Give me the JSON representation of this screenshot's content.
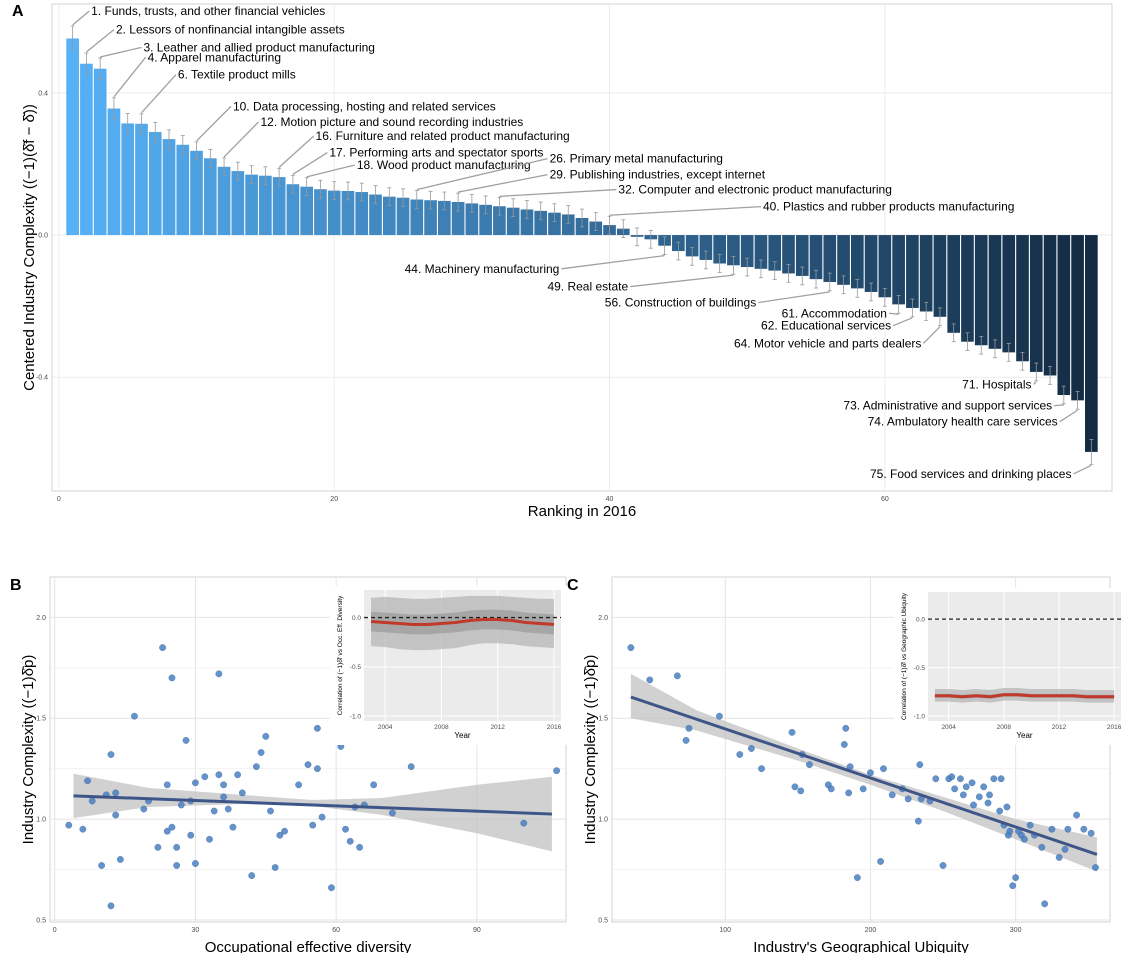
{
  "panel_labels": [
    "A",
    "B",
    "C"
  ],
  "chart_data": [
    {
      "id": "A",
      "type": "bar",
      "xlabel": "Ranking in 2016",
      "ylabel": "Centered Industry Complexity ((−1)(δ̂f − δ̄))",
      "xticks": [
        0,
        20,
        40,
        60
      ],
      "yticks": [
        -0.4,
        0.0,
        0.4
      ],
      "ytick_labels": [
        "-0.4",
        "0.0",
        "0.4"
      ],
      "xlim": [
        -0.5,
        76.5
      ],
      "ylim": [
        -0.72,
        0.65
      ],
      "grid": true,
      "gradient": [
        "#56b1f7",
        "#132b43"
      ],
      "errorbar_color": "#999999",
      "values": [
        0.553,
        0.482,
        0.468,
        0.356,
        0.314,
        0.313,
        0.29,
        0.27,
        0.254,
        0.237,
        0.216,
        0.192,
        0.18,
        0.17,
        0.167,
        0.163,
        0.143,
        0.136,
        0.129,
        0.125,
        0.124,
        0.121,
        0.114,
        0.108,
        0.105,
        0.1,
        0.098,
        0.096,
        0.093,
        0.089,
        0.085,
        0.081,
        0.077,
        0.072,
        0.068,
        0.063,
        0.058,
        0.048,
        0.038,
        0.028,
        0.018,
        -0.005,
        -0.012,
        -0.03,
        -0.045,
        -0.06,
        -0.07,
        -0.08,
        -0.085,
        -0.09,
        -0.095,
        -0.1,
        -0.108,
        -0.115,
        -0.124,
        -0.132,
        -0.14,
        -0.15,
        -0.16,
        -0.175,
        -0.195,
        -0.205,
        -0.215,
        -0.23,
        -0.275,
        -0.3,
        -0.31,
        -0.32,
        -0.33,
        -0.355,
        -0.385,
        -0.395,
        -0.45,
        -0.465,
        -0.61
      ],
      "errors": [
        0.035,
        0.03,
        0.03,
        0.03,
        0.028,
        0.028,
        0.027,
        0.026,
        0.026,
        0.025,
        0.025,
        0.025,
        0.025,
        0.025,
        0.025,
        0.025,
        0.025,
        0.025,
        0.025,
        0.025,
        0.025,
        0.025,
        0.025,
        0.025,
        0.025,
        0.025,
        0.025,
        0.025,
        0.025,
        0.025,
        0.025,
        0.025,
        0.025,
        0.025,
        0.025,
        0.025,
        0.025,
        0.025,
        0.025,
        0.025,
        0.025,
        0.025,
        0.025,
        0.025,
        0.025,
        0.025,
        0.025,
        0.025,
        0.025,
        0.025,
        0.025,
        0.025,
        0.025,
        0.025,
        0.025,
        0.025,
        0.025,
        0.025,
        0.025,
        0.025,
        0.025,
        0.025,
        0.025,
        0.025,
        0.025,
        0.025,
        0.025,
        0.025,
        0.025,
        0.025,
        0.025,
        0.025,
        0.025,
        0.025,
        0.035
      ],
      "annotations": [
        {
          "rank": 1,
          "text": "1. Funds, trusts, and other financial vehicles",
          "lx": 2.2,
          "ly": 0.63
        },
        {
          "rank": 2,
          "text": "2. Lessors of nonfinancial intangible assets",
          "lx": 4.0,
          "ly": 0.578
        },
        {
          "rank": 3,
          "text": "3. Leather and allied product manufacturing",
          "lx": 6.0,
          "ly": 0.528
        },
        {
          "rank": 4,
          "text": "4. Apparel manufacturing",
          "lx": 6.3,
          "ly": 0.5
        },
        {
          "rank": 6,
          "text": "6. Textile product mills",
          "lx": 8.5,
          "ly": 0.451
        },
        {
          "rank": 10,
          "text": "10. Data processing, hosting and related services",
          "lx": 12.5,
          "ly": 0.362
        },
        {
          "rank": 12,
          "text": "12. Motion picture and sound recording industries",
          "lx": 14.5,
          "ly": 0.318
        },
        {
          "rank": 16,
          "text": "16. Furniture and related product manufacturing",
          "lx": 18.5,
          "ly": 0.278
        },
        {
          "rank": 17,
          "text": "17. Performing arts and spectator sports",
          "lx": 19.5,
          "ly": 0.232
        },
        {
          "rank": 18,
          "text": "18. Wood product manufacturing",
          "lx": 21.5,
          "ly": 0.197
        },
        {
          "rank": 26,
          "text": "26. Primary metal manufacturing",
          "lx": 35.5,
          "ly": 0.215
        },
        {
          "rank": 29,
          "text": "29. Publishing industries, except internet",
          "lx": 35.5,
          "ly": 0.17
        },
        {
          "rank": 32,
          "text": "32. Computer and electronic product manufacturing",
          "lx": 40.5,
          "ly": 0.128
        },
        {
          "rank": 40,
          "text": "40. Plastics and rubber products manufacturing",
          "lx": 51.0,
          "ly": 0.08
        },
        {
          "rank": 44,
          "text": "44. Machinery manufacturing",
          "lx": 36.5,
          "ly": -0.095,
          "anchor": "end"
        },
        {
          "rank": 49,
          "text": "49. Real estate",
          "lx": 41.5,
          "ly": -0.145,
          "anchor": "end"
        },
        {
          "rank": 56,
          "text": "56. Construction of buildings",
          "lx": 50.8,
          "ly": -0.19,
          "anchor": "end"
        },
        {
          "rank": 61,
          "text": "61. Accommodation",
          "lx": 60.3,
          "ly": -0.22,
          "anchor": "end"
        },
        {
          "rank": 62,
          "text": "62. Educational services",
          "lx": 60.6,
          "ly": -0.255,
          "anchor": "end"
        },
        {
          "rank": 64,
          "text": "64. Motor vehicle and parts dealers",
          "lx": 62.8,
          "ly": -0.305,
          "anchor": "end"
        },
        {
          "rank": 71,
          "text": "71. Hospitals",
          "lx": 70.8,
          "ly": -0.42,
          "anchor": "end"
        },
        {
          "rank": 73,
          "text": "73. Administrative and support services",
          "lx": 72.3,
          "ly": -0.48,
          "anchor": "end"
        },
        {
          "rank": 74,
          "text": "74. Ambulatory health care services",
          "lx": 72.7,
          "ly": -0.525,
          "anchor": "end"
        },
        {
          "rank": 75,
          "text": "75. Food services and drinking places",
          "lx": 73.7,
          "ly": -0.672,
          "anchor": "end"
        }
      ]
    },
    {
      "id": "B",
      "type": "scatter",
      "xlabel": "Occupational effective diversity",
      "ylabel": "Industry Complexity ((−1)δ̂p)",
      "xticks": [
        0,
        30,
        60,
        90
      ],
      "yticks": [
        0.5,
        1.0,
        1.5,
        2.0
      ],
      "ytick_labels": [
        "0.5",
        "1.0",
        "1.5",
        "2.0"
      ],
      "xlim": [
        -1,
        109
      ],
      "ylim": [
        0.49,
        2.2
      ],
      "point_color": "#4a7fc1",
      "fit": {
        "x0": 4,
        "y0": 1.115,
        "x1": 106,
        "y1": 1.025,
        "color": "#3e5588"
      },
      "ribbon": [
        [
          4,
          1.005,
          1.225
        ],
        [
          20,
          1.06,
          1.155
        ],
        [
          40,
          1.075,
          1.12
        ],
        [
          55,
          1.065,
          1.095
        ],
        [
          70,
          1.02,
          1.105
        ],
        [
          90,
          0.93,
          1.17
        ],
        [
          106,
          0.84,
          1.21
        ]
      ],
      "x": [
        3,
        6,
        7,
        8,
        10,
        11,
        12,
        12,
        13,
        13,
        14,
        17,
        19,
        20,
        22,
        23,
        24,
        24,
        25,
        25,
        26,
        26,
        27,
        28,
        29,
        29,
        30,
        30,
        32,
        33,
        34,
        35,
        35,
        36,
        36,
        37,
        38,
        39,
        40,
        42,
        43,
        44,
        45,
        46,
        47,
        48,
        49,
        52,
        54,
        55,
        56,
        56,
        57,
        59,
        61,
        62,
        63,
        64,
        65,
        66,
        68,
        72,
        76,
        100,
        107
      ],
      "y": [
        0.97,
        0.95,
        1.19,
        1.09,
        0.77,
        1.12,
        0.57,
        1.32,
        1.13,
        1.02,
        0.8,
        1.51,
        1.05,
        1.09,
        0.86,
        1.85,
        1.17,
        0.94,
        1.7,
        0.96,
        0.77,
        0.86,
        1.07,
        1.39,
        1.09,
        0.92,
        1.18,
        0.78,
        1.21,
        0.9,
        1.04,
        1.72,
        1.22,
        1.17,
        1.11,
        1.05,
        0.96,
        1.22,
        1.13,
        0.72,
        1.26,
        1.33,
        1.41,
        1.04,
        0.76,
        0.92,
        0.94,
        1.17,
        1.27,
        0.97,
        1.25,
        1.45,
        1.01,
        0.66,
        1.36,
        0.95,
        0.89,
        1.06,
        0.86,
        1.07,
        1.17,
        1.03,
        1.26,
        0.98,
        1.24
      ],
      "inset": {
        "xlabel": "Year",
        "ylabel": "Correlation of (−1)δ̂f vs Occ. Eff. Diversity",
        "xticks": [
          2004,
          2008,
          2012,
          2016
        ],
        "yticks": [
          -1.0,
          -0.5,
          0.0
        ],
        "ytick_labels": [
          "-1.0",
          "-0.5",
          "0.0"
        ],
        "xlim": [
          2002.5,
          2016.5
        ],
        "ylim": [
          -1.05,
          0.28
        ],
        "years": [
          2003,
          2004,
          2005,
          2006,
          2007,
          2008,
          2009,
          2010,
          2011,
          2012,
          2013,
          2014,
          2015,
          2016
        ],
        "mean": [
          -0.04,
          -0.05,
          -0.06,
          -0.07,
          -0.07,
          -0.06,
          -0.05,
          -0.03,
          -0.02,
          -0.02,
          -0.03,
          -0.05,
          -0.06,
          -0.07
        ],
        "lo": [
          -0.29,
          -0.3,
          -0.32,
          -0.33,
          -0.33,
          -0.32,
          -0.31,
          -0.28,
          -0.26,
          -0.26,
          -0.27,
          -0.29,
          -0.3,
          -0.31
        ],
        "hi": [
          0.2,
          0.21,
          0.2,
          0.19,
          0.19,
          0.2,
          0.21,
          0.22,
          0.22,
          0.22,
          0.21,
          0.2,
          0.19,
          0.19
        ],
        "inner_lo": [
          -0.14,
          -0.15,
          -0.16,
          -0.17,
          -0.17,
          -0.16,
          -0.15,
          -0.13,
          -0.12,
          -0.12,
          -0.13,
          -0.15,
          -0.16,
          -0.17
        ],
        "inner_hi": [
          0.06,
          0.05,
          0.04,
          0.03,
          0.03,
          0.04,
          0.05,
          0.07,
          0.08,
          0.08,
          0.07,
          0.05,
          0.04,
          0.03
        ]
      }
    },
    {
      "id": "C",
      "type": "scatter",
      "xlabel": "Industry's Geographical Ubiquity",
      "ylabel": "Industry Complexity ((−1)δ̂p)",
      "xticks": [
        100,
        200,
        300
      ],
      "yticks": [
        0.5,
        1.0,
        1.5,
        2.0
      ],
      "ytick_labels": [
        "0.5",
        "1.0",
        "1.5",
        "2.0"
      ],
      "xlim": [
        22,
        365
      ],
      "ylim": [
        0.49,
        2.2
      ],
      "point_color": "#4a7fc1",
      "fit": {
        "x0": 35,
        "y0": 1.605,
        "x1": 356,
        "y1": 0.825,
        "color": "#3e5588"
      },
      "ribbon": [
        [
          35,
          1.5,
          1.72
        ],
        [
          80,
          1.44,
          1.54
        ],
        [
          150,
          1.29,
          1.35
        ],
        [
          200,
          1.17,
          1.22
        ],
        [
          250,
          1.04,
          1.11
        ],
        [
          300,
          0.9,
          1.0
        ],
        [
          356,
          0.74,
          0.91
        ]
      ],
      "x": [
        35,
        48,
        67,
        73,
        75,
        96,
        110,
        118,
        125,
        146,
        148,
        152,
        153,
        158,
        171,
        173,
        182,
        183,
        185,
        186,
        191,
        195,
        200,
        207,
        209,
        215,
        222,
        226,
        233,
        234,
        235,
        241,
        245,
        250,
        254,
        256,
        258,
        262,
        264,
        266,
        270,
        271,
        275,
        278,
        281,
        282,
        285,
        289,
        290,
        292,
        294,
        295,
        296,
        298,
        300,
        302,
        304,
        306,
        310,
        313,
        318,
        320,
        325,
        330,
        334,
        336,
        342,
        347,
        352,
        355
      ],
      "y": [
        1.85,
        1.69,
        1.71,
        1.39,
        1.45,
        1.51,
        1.32,
        1.35,
        1.25,
        1.43,
        1.16,
        1.14,
        1.32,
        1.27,
        1.17,
        1.15,
        1.37,
        1.45,
        1.13,
        1.26,
        0.71,
        1.15,
        1.23,
        0.79,
        1.25,
        1.12,
        1.15,
        1.1,
        0.99,
        1.27,
        1.1,
        1.09,
        1.2,
        0.77,
        1.2,
        1.21,
        1.15,
        1.2,
        1.12,
        1.16,
        1.18,
        1.07,
        1.11,
        1.16,
        1.08,
        1.12,
        1.2,
        1.04,
        1.2,
        0.97,
        1.06,
        0.92,
        0.94,
        0.67,
        0.71,
        0.94,
        0.92,
        0.9,
        0.97,
        0.92,
        0.86,
        0.58,
        0.95,
        0.81,
        0.85,
        0.95,
        1.02,
        0.95,
        0.93,
        0.76
      ],
      "inset": {
        "xlabel": "Year",
        "ylabel": "Correlation of (−1)δ̂f vs Geographic Ubiquity",
        "xticks": [
          2004,
          2008,
          2012,
          2016
        ],
        "yticks": [
          -1.0,
          -0.5,
          0.0
        ],
        "ytick_labels": [
          "-1.0",
          "-0.5",
          "0.0"
        ],
        "xlim": [
          2002.5,
          2016.5
        ],
        "ylim": [
          -1.05,
          0.28
        ],
        "years": [
          2003,
          2004,
          2005,
          2006,
          2007,
          2008,
          2009,
          2010,
          2011,
          2012,
          2013,
          2014,
          2015,
          2016
        ],
        "mean": [
          -0.79,
          -0.79,
          -0.8,
          -0.79,
          -0.8,
          -0.78,
          -0.78,
          -0.79,
          -0.79,
          -0.79,
          -0.79,
          -0.8,
          -0.8,
          -0.8
        ],
        "lo": [
          -0.85,
          -0.85,
          -0.86,
          -0.85,
          -0.86,
          -0.84,
          -0.84,
          -0.85,
          -0.85,
          -0.85,
          -0.85,
          -0.86,
          -0.86,
          -0.86
        ],
        "hi": [
          -0.72,
          -0.72,
          -0.73,
          -0.72,
          -0.73,
          -0.71,
          -0.71,
          -0.72,
          -0.72,
          -0.72,
          -0.72,
          -0.73,
          -0.73,
          -0.73
        ],
        "inner_lo": [
          -0.81,
          -0.81,
          -0.82,
          -0.81,
          -0.82,
          -0.8,
          -0.8,
          -0.81,
          -0.81,
          -0.81,
          -0.81,
          -0.82,
          -0.82,
          -0.82
        ],
        "inner_hi": [
          -0.77,
          -0.77,
          -0.78,
          -0.77,
          -0.78,
          -0.76,
          -0.76,
          -0.77,
          -0.77,
          -0.77,
          -0.77,
          -0.78,
          -0.78,
          -0.78
        ]
      }
    }
  ]
}
